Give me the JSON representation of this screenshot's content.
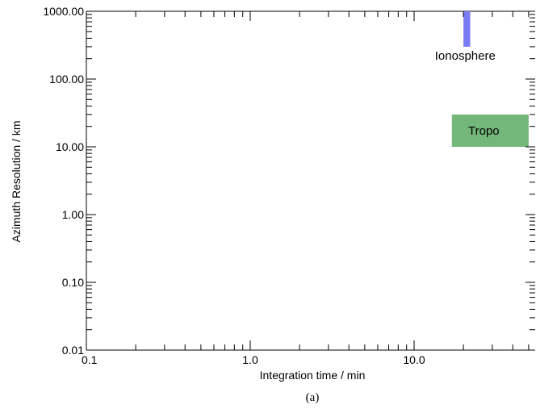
{
  "chart_data": {
    "type": "area",
    "xlabel": "Integration time / min",
    "ylabel": "Azimuth Resolution / km",
    "caption": "(a)",
    "xscale": "log",
    "yscale": "log",
    "xlim": [
      0.1,
      55
    ],
    "ylim": [
      0.01,
      1000
    ],
    "x_ticks": [
      "0.1",
      "1.0",
      "10.0"
    ],
    "y_ticks": [
      "0.01",
      "0.10",
      "1.00",
      "10.00",
      "100.00",
      "1000.00"
    ],
    "grid": false,
    "regions": [
      {
        "label": "Ionosphere",
        "x": [
          20,
          22
        ],
        "y": [
          300,
          1000
        ],
        "color": "#7b7bf5",
        "label_pos": "below"
      },
      {
        "label": "Tropo",
        "x": [
          17,
          50
        ],
        "y": [
          10,
          30
        ],
        "color": "#74b77a",
        "label_pos": "inside"
      }
    ]
  }
}
